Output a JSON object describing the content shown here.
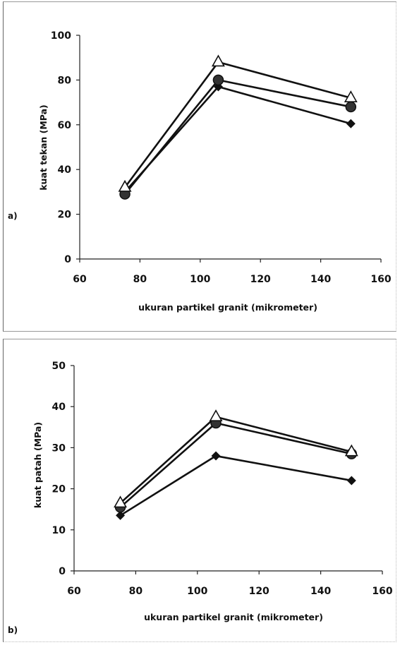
{
  "chart_data": [
    {
      "type": "line",
      "panel_label": "a)",
      "xlabel": "ukuran partikel granit (mikrometer)",
      "ylabel": "kuat tekan (MPa)",
      "xlim": [
        60,
        160
      ],
      "ylim": [
        0,
        100
      ],
      "xticks": [
        60,
        80,
        100,
        120,
        140,
        160
      ],
      "yticks": [
        0,
        20,
        40,
        60,
        80,
        100
      ],
      "x": [
        75,
        106,
        150
      ],
      "series": [
        {
          "marker": "diamond",
          "values": [
            30,
            77,
            60.5
          ]
        },
        {
          "marker": "circle",
          "values": [
            29,
            80,
            68
          ]
        },
        {
          "marker": "triangle",
          "values": [
            32,
            88,
            72
          ]
        }
      ],
      "grid": false,
      "legend": "none"
    },
    {
      "type": "line",
      "panel_label": "b)",
      "xlabel": "ukuran partikel granit (mikrometer)",
      "ylabel": "kuat patah (MPa)",
      "xlim": [
        60,
        160
      ],
      "ylim": [
        0,
        50
      ],
      "xticks": [
        60,
        80,
        100,
        120,
        140,
        160
      ],
      "yticks": [
        0,
        10,
        20,
        30,
        40,
        50
      ],
      "x": [
        75,
        106,
        150
      ],
      "series": [
        {
          "marker": "diamond",
          "values": [
            13.5,
            28,
            22
          ]
        },
        {
          "marker": "circle",
          "values": [
            15.5,
            36,
            28.5
          ]
        },
        {
          "marker": "triangle",
          "values": [
            16.5,
            37.5,
            29
          ]
        }
      ],
      "grid": false,
      "legend": "none"
    }
  ]
}
